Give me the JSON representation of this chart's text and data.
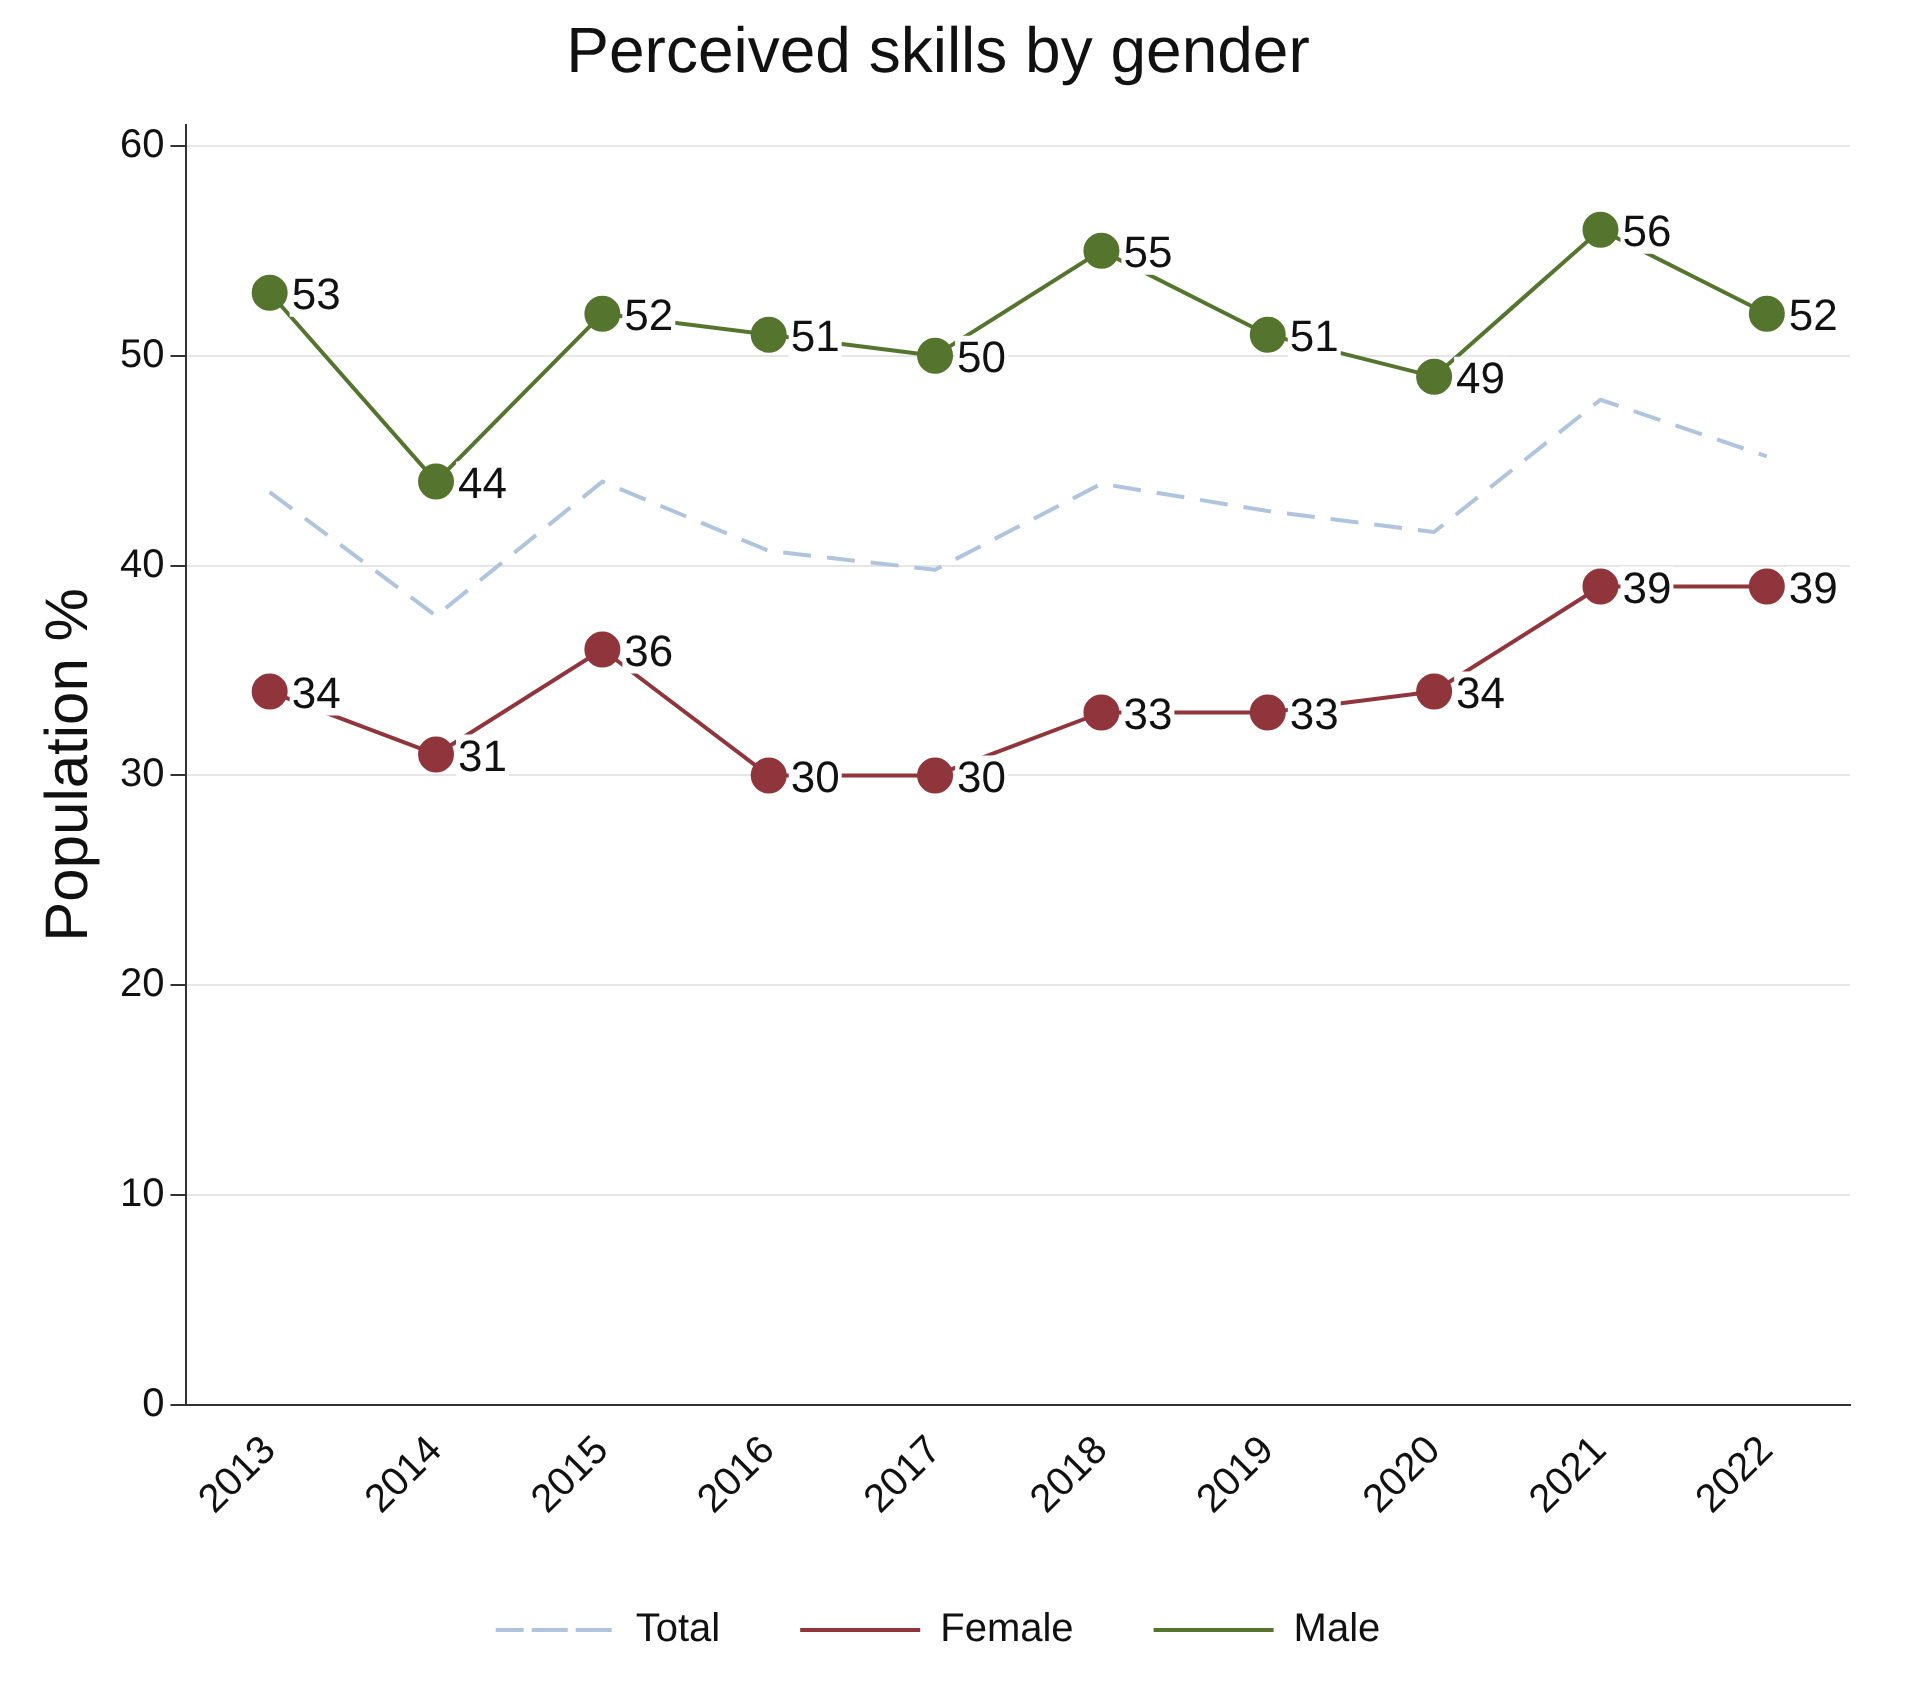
{
  "chart_data": {
    "type": "line",
    "title": "Perceived skills by gender",
    "ylabel": "Population %",
    "categories": [
      "2013",
      "2014",
      "2015",
      "2016",
      "2017",
      "2018",
      "2019",
      "2020",
      "2021",
      "2022"
    ],
    "series": [
      {
        "name": "Total",
        "color": "#b0c4de",
        "values": [
          43.5,
          37.6,
          44,
          40.7,
          39.8,
          43.9,
          42.6,
          41.6,
          47.9,
          45.2
        ],
        "line_style": "dashed",
        "marker": "none"
      },
      {
        "name": "Female",
        "color": "#90353b",
        "values": [
          34,
          31,
          36,
          30,
          30,
          33,
          33,
          34,
          39,
          39
        ],
        "marker": "circle",
        "line_style": "solid",
        "value_labels": [
          "34",
          "31",
          "36",
          "30",
          "30",
          "33",
          "33",
          "34",
          "39",
          "39"
        ]
      },
      {
        "name": "Male",
        "color": "#55752f",
        "values": [
          53,
          44,
          52,
          51,
          50,
          55,
          51,
          49,
          56,
          52
        ],
        "marker": "circle",
        "line_style": "solid",
        "value_labels": [
          "53",
          "44",
          "52",
          "51",
          "50",
          "55",
          "51",
          "49",
          "56",
          "52"
        ]
      }
    ],
    "ylim": [
      0,
      61
    ],
    "yticks": [
      0,
      10,
      20,
      30,
      40,
      50,
      60
    ],
    "grid": "y",
    "legend": "bottom"
  }
}
